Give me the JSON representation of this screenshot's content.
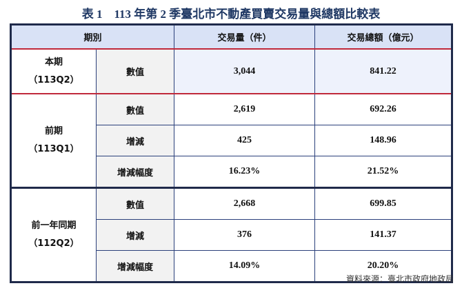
{
  "title": "表 1　113 年第 2 季臺北市不動產買賣交易量與總額比較表",
  "headers": [
    "期別",
    "交易量（件）",
    "交易總額（億元）"
  ],
  "groups": [
    {
      "period": "本期",
      "code": "（113Q2）",
      "rows": [
        {
          "label": "數值",
          "volume": "3,044",
          "amount": "841.22"
        }
      ]
    },
    {
      "period": "前期",
      "code": "（113Q1）",
      "rows": [
        {
          "label": "數值",
          "volume": "2,619",
          "amount": "692.26"
        },
        {
          "label": "增減",
          "volume": "425",
          "amount": "148.96"
        },
        {
          "label": "增減幅度",
          "volume": "16.23%",
          "amount": "21.52%"
        }
      ]
    },
    {
      "period": "前一年同期",
      "code": "（112Q2）",
      "rows": [
        {
          "label": "數值",
          "volume": "2,668",
          "amount": "699.85"
        },
        {
          "label": "增減",
          "volume": "376",
          "amount": "141.37"
        },
        {
          "label": "增減幅度",
          "volume": "14.09%",
          "amount": "20.20%"
        }
      ]
    }
  ],
  "source": "資料來源：臺北市政府地政局"
}
